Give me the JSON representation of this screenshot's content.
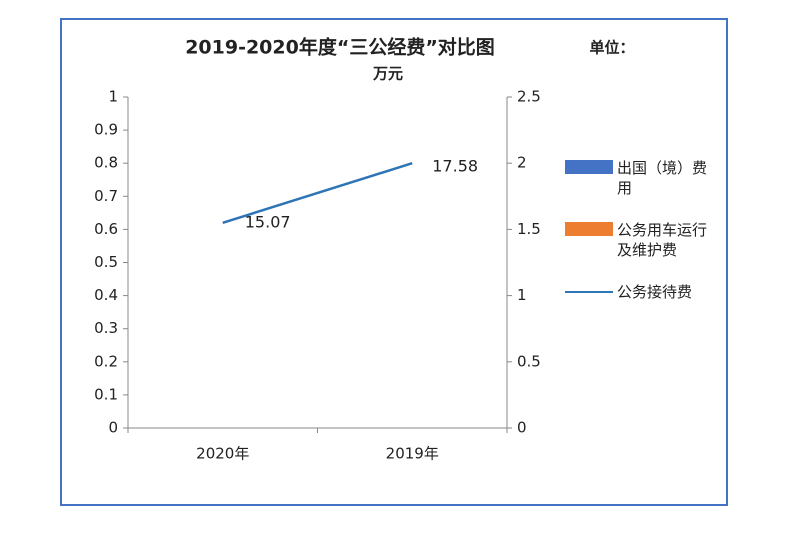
{
  "chart_data": {
    "type": "line",
    "title": "2019-2020年度“三公经费”对比图",
    "unit_label": [
      "单位：",
      "万元"
    ],
    "categories": [
      "2020年",
      "2019年"
    ],
    "series": [
      {
        "name": "出国（境）费用",
        "color": "#4472c4",
        "kind": "bar",
        "values": [
          null,
          null
        ]
      },
      {
        "name": "公务用车运行及维护费",
        "color": "#ed7d31",
        "kind": "bar",
        "values": [
          null,
          null
        ]
      },
      {
        "name": "公务接待费",
        "color": "#2e75b6",
        "kind": "line",
        "axis": "y2",
        "values": [
          1.55,
          2.0
        ]
      }
    ],
    "annotations": [
      "15.07",
      "17.58"
    ],
    "ylim": [
      0,
      1
    ],
    "yticks": [
      0,
      0.1,
      0.2,
      0.3,
      0.4,
      0.5,
      0.6,
      0.7,
      0.8,
      0.9,
      1
    ],
    "y2lim": [
      0,
      2.5
    ],
    "y2ticks": [
      0,
      0.5,
      1,
      1.5,
      2,
      2.5
    ],
    "legend": "right",
    "grid": false
  }
}
